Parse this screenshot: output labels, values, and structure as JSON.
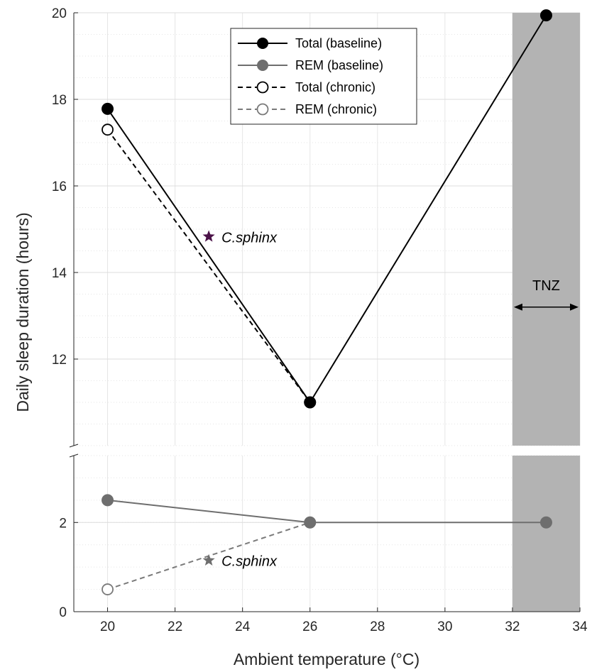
{
  "chart_data": {
    "type": "line",
    "xlabel": "Ambient temperature (°C)",
    "ylabel": "Daily sleep duration (hours)",
    "xlim": [
      19,
      34
    ],
    "x_ticks": [
      20,
      22,
      24,
      26,
      28,
      30,
      32,
      34
    ],
    "panels": [
      {
        "id": "upper",
        "ylim": [
          10,
          20
        ],
        "y_ticks": [
          12,
          14,
          16,
          18,
          20
        ],
        "grid": "major-and-minor"
      },
      {
        "id": "lower",
        "ylim": [
          0,
          3.5
        ],
        "y_ticks": [
          0,
          2
        ],
        "grid": "major-and-minor"
      }
    ],
    "series": [
      {
        "name": "Total (baseline)",
        "panel": "upper",
        "style": "solid",
        "marker": "filled",
        "color": "#000000",
        "points": [
          {
            "x": 20,
            "y": 17.78
          },
          {
            "x": 26,
            "y": 11.0
          },
          {
            "x": 33,
            "y": 19.94
          }
        ]
      },
      {
        "name": "REM (baseline)",
        "panel": "lower",
        "style": "solid",
        "marker": "filled",
        "color": "#6e6e6e",
        "points": [
          {
            "x": 20,
            "y": 2.5
          },
          {
            "x": 26,
            "y": 2.0
          },
          {
            "x": 33,
            "y": 2.0
          }
        ]
      },
      {
        "name": "Total (chronic)",
        "panel": "upper",
        "style": "dashed",
        "marker": "open",
        "color": "#000000",
        "points": [
          {
            "x": 20,
            "y": 17.3
          },
          {
            "x": 26,
            "y": 11.0
          }
        ]
      },
      {
        "name": "REM (chronic)",
        "panel": "lower",
        "style": "dashed",
        "marker": "open",
        "color": "#7a7a7a",
        "points": [
          {
            "x": 20,
            "y": 0.5
          },
          {
            "x": 26,
            "y": 2.0
          }
        ]
      }
    ],
    "annotations": [
      {
        "label": "C.sphinx",
        "panel": "upper",
        "x": 23,
        "y": 14.83,
        "marker": "star",
        "color": "#4b1248"
      },
      {
        "label": "C.sphinx",
        "panel": "lower",
        "x": 23,
        "y": 1.15,
        "marker": "star",
        "color": "#6e6e6e"
      }
    ],
    "shaded_region": {
      "label": "TNZ",
      "x_start": 32,
      "x_end": 34,
      "color": "#b3b3b3"
    },
    "legend": {
      "position": "top-center"
    }
  }
}
